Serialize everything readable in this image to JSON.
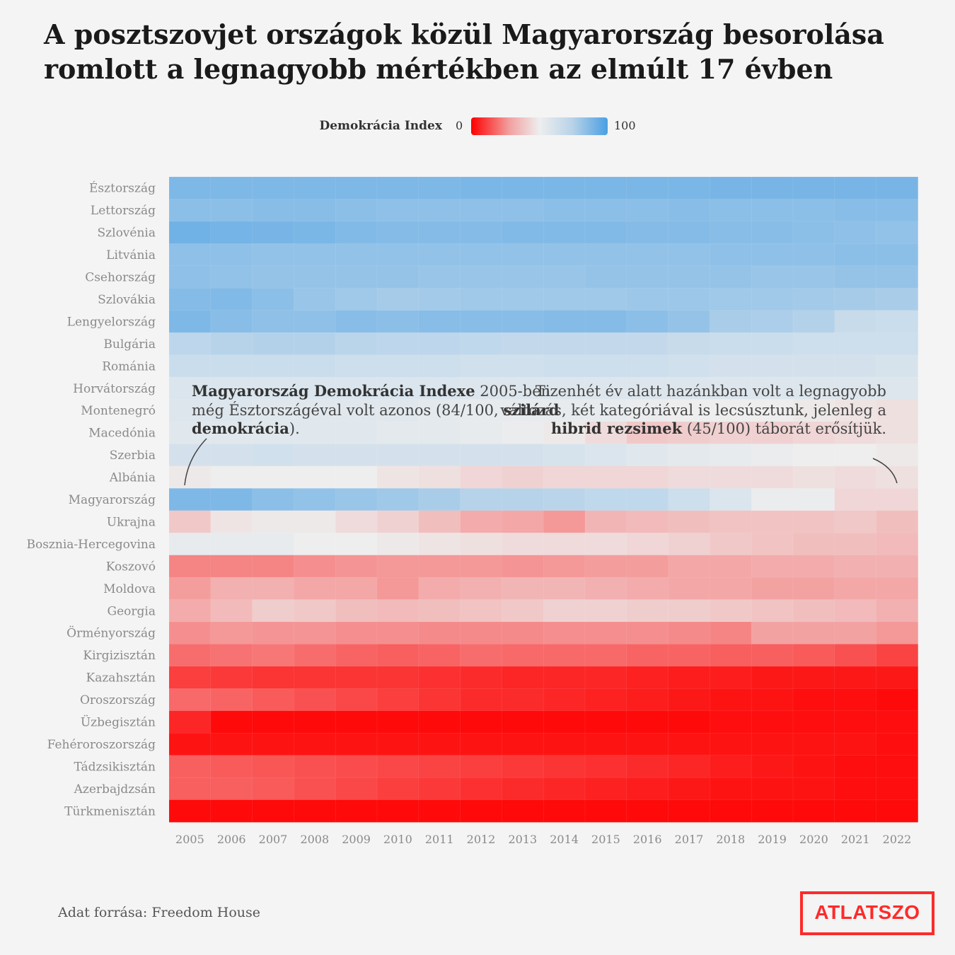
{
  "title": "A posztszovjet országok közül Magyarország besorolása romlott a legnagyobb mértékben az elmúlt 17 évben",
  "legend": {
    "label": "Demokrácia Index",
    "min": "0",
    "max": "100",
    "colors": {
      "low": "#ff0000",
      "mid": "#eeeeee",
      "high": "#4a9fe3"
    }
  },
  "annotations": {
    "left": {
      "bold1": "Magyarország Demokrácia Indexe",
      "text1": " 2005-ben még Észtországéval volt azonos (84/100, ",
      "bold2": "szilárd demokrácia",
      "text2": ")."
    },
    "right": {
      "text1": "Tizenhét év alatt hazánkban volt a legnagyobb változás, két kategóriával is lecsúsztunk, jelenleg a ",
      "bold1": "hibrid rezsimek",
      "text2": " (45/100) táborát erősítjük."
    }
  },
  "source": "Adat forrása: Freedom House",
  "logo": "ATLATSZO",
  "chart_data": {
    "type": "heatmap",
    "x": [
      "2005",
      "2006",
      "2007",
      "2008",
      "2009",
      "2010",
      "2011",
      "2012",
      "2013",
      "2014",
      "2015",
      "2016",
      "2017",
      "2018",
      "2019",
      "2020",
      "2021",
      "2022"
    ],
    "y": [
      "Észtország",
      "Lettország",
      "Szlovénia",
      "Litvánia",
      "Csehország",
      "Szlovákia",
      "Lengyelország",
      "Bulgária",
      "Románia",
      "Horvátország",
      "Montenegró",
      "Macedónia",
      "Szerbia",
      "Albánia",
      "Magyarország",
      "Ukrajna",
      "Bosznia-Hercegovina",
      "Koszovó",
      "Moldova",
      "Georgia",
      "Örményország",
      "Kirgizisztán",
      "Kazahsztán",
      "Oroszország",
      "Üzbegisztán",
      "Fehéroroszország",
      "Tádzsikisztán",
      "Azerbajdzsán",
      "Türkmenisztán"
    ],
    "value_range": [
      0,
      100
    ],
    "values": [
      [
        84,
        84,
        84,
        84,
        84,
        84,
        84,
        85,
        85,
        85,
        85,
        85,
        85,
        86,
        86,
        86,
        86,
        86
      ],
      [
        80,
        80,
        81,
        81,
        80,
        79,
        79,
        79,
        79,
        80,
        80,
        80,
        81,
        80,
        80,
        80,
        81,
        81
      ],
      [
        88,
        87,
        86,
        85,
        83,
        82,
        82,
        82,
        83,
        83,
        83,
        82,
        82,
        81,
        81,
        80,
        79,
        78
      ],
      [
        79,
        79,
        78,
        78,
        78,
        78,
        78,
        78,
        78,
        78,
        78,
        78,
        78,
        79,
        79,
        79,
        80,
        80
      ],
      [
        79,
        78,
        77,
        77,
        77,
        77,
        76,
        76,
        76,
        76,
        77,
        77,
        77,
        77,
        76,
        76,
        77,
        77
      ],
      [
        82,
        83,
        80,
        76,
        74,
        72,
        73,
        74,
        74,
        74,
        74,
        75,
        75,
        74,
        74,
        73,
        72,
        71
      ],
      [
        84,
        81,
        79,
        79,
        81,
        80,
        81,
        81,
        81,
        82,
        82,
        80,
        77,
        71,
        70,
        68,
        62,
        61
      ],
      [
        65,
        67,
        68,
        68,
        66,
        65,
        65,
        64,
        63,
        63,
        63,
        63,
        62,
        61,
        61,
        60,
        60,
        60
      ],
      [
        61,
        61,
        61,
        61,
        60,
        60,
        60,
        59,
        59,
        60,
        60,
        60,
        59,
        58,
        58,
        58,
        58,
        57
      ],
      [
        56,
        56,
        56,
        56,
        56,
        56,
        56,
        55,
        55,
        55,
        55,
        55,
        55,
        55,
        55,
        55,
        55,
        55
      ],
      [
        55,
        55,
        54,
        54,
        54,
        54,
        53,
        52,
        52,
        52,
        52,
        51,
        50,
        50,
        50,
        49,
        48,
        47
      ],
      [
        54,
        54,
        54,
        54,
        54,
        53,
        53,
        52,
        51,
        49,
        46,
        42,
        43,
        44,
        44,
        45,
        46,
        47
      ],
      [
        58,
        58,
        59,
        58,
        58,
        58,
        58,
        58,
        58,
        57,
        56,
        54,
        53,
        52,
        51,
        50,
        50,
        49
      ],
      [
        49,
        50,
        50,
        50,
        50,
        48,
        47,
        45,
        44,
        45,
        45,
        45,
        46,
        46,
        46,
        47,
        46,
        47
      ],
      [
        84,
        84,
        80,
        78,
        76,
        74,
        71,
        67,
        67,
        66,
        64,
        64,
        60,
        56,
        51,
        51,
        45,
        45
      ],
      [
        42,
        48,
        49,
        49,
        46,
        44,
        40,
        36,
        35,
        32,
        38,
        39,
        40,
        41,
        41,
        41,
        42,
        40
      ],
      [
        52,
        52,
        52,
        50,
        50,
        49,
        48,
        47,
        46,
        46,
        46,
        45,
        44,
        42,
        41,
        40,
        40,
        39
      ],
      [
        28,
        28,
        28,
        30,
        31,
        32,
        32,
        32,
        31,
        32,
        33,
        33,
        35,
        35,
        36,
        36,
        37,
        37
      ],
      [
        33,
        37,
        37,
        35,
        35,
        32,
        36,
        37,
        38,
        38,
        37,
        36,
        35,
        35,
        34,
        34,
        35,
        35
      ],
      [
        36,
        39,
        43,
        42,
        40,
        39,
        40,
        41,
        42,
        44,
        44,
        43,
        43,
        42,
        41,
        40,
        39,
        37
      ],
      [
        30,
        32,
        31,
        31,
        30,
        30,
        29,
        29,
        29,
        30,
        30,
        30,
        29,
        28,
        34,
        34,
        34,
        32
      ],
      [
        23,
        24,
        25,
        23,
        21,
        20,
        21,
        23,
        22,
        22,
        22,
        21,
        21,
        20,
        20,
        19,
        17,
        14
      ],
      [
        13,
        12,
        11,
        11,
        11,
        11,
        10,
        9,
        8,
        8,
        8,
        7,
        6,
        6,
        5,
        5,
        5,
        5
      ],
      [
        22,
        21,
        19,
        17,
        15,
        13,
        11,
        9,
        9,
        8,
        7,
        6,
        5,
        4,
        4,
        3,
        3,
        2
      ],
      [
        8,
        2,
        2,
        2,
        2,
        2,
        2,
        2,
        2,
        2,
        2,
        2,
        2,
        3,
        3,
        3,
        3,
        3
      ],
      [
        4,
        4,
        4,
        4,
        4,
        4,
        4,
        4,
        4,
        4,
        4,
        4,
        4,
        4,
        4,
        4,
        4,
        3
      ],
      [
        20,
        19,
        18,
        17,
        16,
        15,
        14,
        13,
        12,
        11,
        10,
        9,
        8,
        6,
        5,
        4,
        3,
        3
      ],
      [
        20,
        20,
        19,
        17,
        15,
        13,
        12,
        10,
        9,
        8,
        7,
        6,
        5,
        4,
        4,
        4,
        3,
        3
      ],
      [
        2,
        2,
        2,
        2,
        2,
        2,
        2,
        2,
        2,
        2,
        2,
        2,
        2,
        2,
        2,
        2,
        2,
        2
      ]
    ]
  }
}
